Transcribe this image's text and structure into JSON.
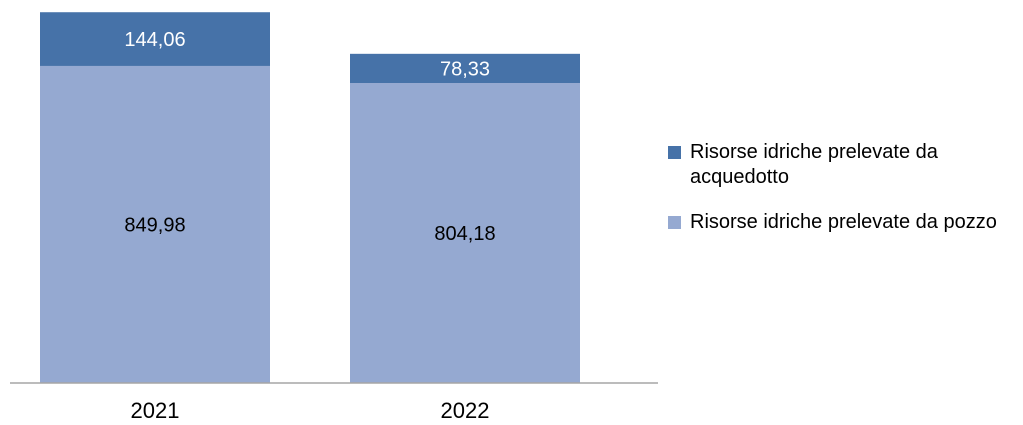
{
  "chart_data": {
    "type": "bar",
    "stacked": true,
    "categories": [
      "2021",
      "2022"
    ],
    "series": [
      {
        "name": "Risorse idriche prelevate da pozzo",
        "values": [
          849.98,
          804.18
        ],
        "labels": [
          "849,98",
          "804,18"
        ],
        "color": "#95a9d1",
        "label_color": "#000000"
      },
      {
        "name": "Risorse idriche prelevate da acquedotto",
        "values": [
          144.06,
          78.33
        ],
        "labels": [
          "144,06",
          "78,33"
        ],
        "color": "#4672a8",
        "label_color": "#ffffff"
      }
    ],
    "ylim": [
      0,
      1000
    ],
    "grid": false,
    "legend_position": "right"
  },
  "legend": [
    {
      "label": "Risorse idriche prelevate da acquedotto",
      "color": "#4672a8"
    },
    {
      "label": "Risorse idriche prelevate da pozzo",
      "color": "#95a9d1"
    }
  ]
}
